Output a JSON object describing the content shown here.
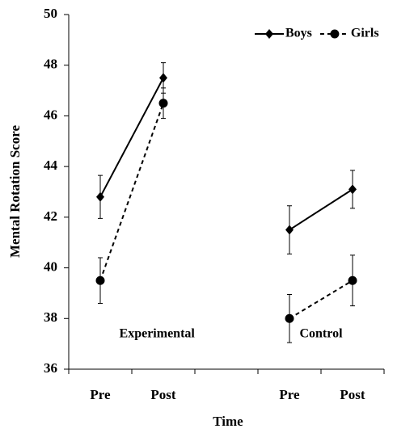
{
  "chart_data": {
    "type": "line",
    "x_label": "Time",
    "y_label": "Mental Rotation Score",
    "categories": [
      "Pre",
      "Post",
      null,
      "Pre",
      "Post"
    ],
    "series": [
      {
        "name": "Boys",
        "color": "#000000",
        "linestyle": "solid",
        "marker": "diamond",
        "values": [
          42.8,
          47.5,
          null,
          41.5,
          43.1
        ],
        "errors": [
          0.85,
          0.6,
          null,
          0.95,
          0.75
        ]
      },
      {
        "name": "Girls",
        "color": "#000000",
        "linestyle": "dashed",
        "marker": "circle",
        "values": [
          39.5,
          46.5,
          null,
          38.0,
          39.5
        ],
        "errors": [
          0.9,
          0.6,
          null,
          0.95,
          1.0
        ]
      }
    ],
    "annotations": [
      {
        "text": "Experimental",
        "category": 0.9
      },
      {
        "text": "Control",
        "category": 3.5
      }
    ],
    "ylim": [
      36,
      50
    ],
    "yticks": [
      36,
      38,
      40,
      42,
      44,
      46,
      48,
      50
    ],
    "grid": false,
    "legend": "upper right"
  }
}
